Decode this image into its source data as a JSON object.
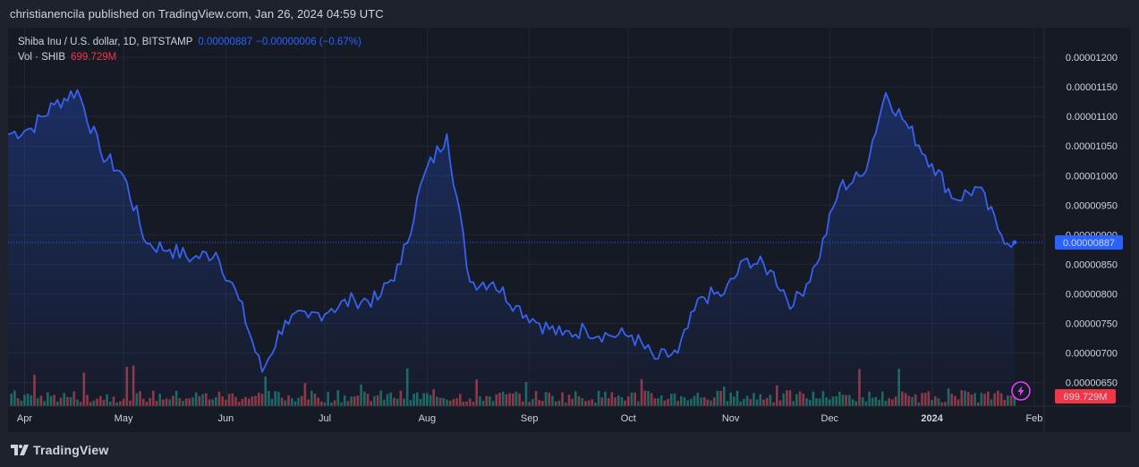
{
  "header": {
    "publisher_text": "christianencila published on TradingView.com, Jan 26, 2024 04:59 UTC"
  },
  "legend": {
    "symbol": "Shiba Inu / U.S. dollar, 1D, BITSTAMP",
    "last_price": "0.00000887",
    "change": "−0.00000006 (−0.67%)",
    "volume_label": "Vol · SHIB",
    "volume_value": "699.729M"
  },
  "footer": {
    "brand": "TradingView"
  },
  "colors": {
    "line": "#3861f0",
    "vol_up": "#22ab94",
    "vol_down": "#f7525f",
    "price_tag": "#2962ff",
    "vol_tag": "#f23645"
  },
  "icons": {
    "lightning": "lightning-icon",
    "brand": "tradingview-logo-icon"
  },
  "chart_data": {
    "type": "line",
    "series": [
      {
        "name": "Shiba Inu / U.S. dollar",
        "x": [
          "2023-03-27",
          "2023-04-03",
          "2023-04-10",
          "2023-04-17",
          "2023-04-24",
          "2023-05-01",
          "2023-05-08",
          "2023-05-15",
          "2023-05-22",
          "2023-05-29",
          "2023-06-05",
          "2023-06-12",
          "2023-06-19",
          "2023-06-26",
          "2023-07-03",
          "2023-07-10",
          "2023-07-17",
          "2023-07-24",
          "2023-07-31",
          "2023-08-07",
          "2023-08-14",
          "2023-08-21",
          "2023-08-28",
          "2023-09-04",
          "2023-09-11",
          "2023-09-18",
          "2023-09-25",
          "2023-10-02",
          "2023-10-09",
          "2023-10-16",
          "2023-10-23",
          "2023-10-30",
          "2023-11-06",
          "2023-11-13",
          "2023-11-20",
          "2023-11-27",
          "2023-12-04",
          "2023-12-11",
          "2023-12-18",
          "2023-12-25",
          "2024-01-01",
          "2024-01-08",
          "2024-01-15",
          "2024-01-22",
          "2024-01-26"
        ],
        "values": [
          1.07e-05,
          1.08e-05,
          1.12e-05,
          1.145e-05,
          1.04e-05,
          1e-05,
          8.85e-06,
          8.75e-06,
          8.6e-06,
          8.7e-06,
          7.9e-06,
          6.68e-06,
          7.55e-06,
          7.6e-06,
          7.75e-06,
          7.9e-06,
          7.9e-06,
          8.5e-06,
          1e-05,
          1.07e-05,
          8.2e-06,
          8.2e-06,
          7.8e-06,
          7.5e-06,
          7.3e-06,
          7.4e-06,
          7.3e-06,
          7.3e-06,
          6.9e-06,
          7e-06,
          7.95e-06,
          8e-06,
          8.6e-06,
          8.4e-06,
          7.8e-06,
          8.5e-06,
          9.8e-06,
          1e-05,
          1.14e-05,
          1.08e-05,
          1.02e-05,
          9.6e-06,
          9.8e-06,
          9e-06,
          8.87e-06
        ]
      }
    ],
    "volume": {
      "name": "Vol · SHIB",
      "last": "699.729M"
    },
    "y_axis": {
      "ticks": [
        "0.00001200",
        "0.00001150",
        "0.00001100",
        "0.00001050",
        "0.00001000",
        "0.00000950",
        "0.00000900",
        "0.00000850",
        "0.00000800",
        "0.00000750",
        "0.00000700",
        "0.00000650"
      ],
      "ylim": [
        6.1e-06,
        1.235e-05
      ],
      "last_label": "0.00000887"
    },
    "x_axis": {
      "range": [
        "2023-03-27",
        "2024-02-04"
      ],
      "ticks": [
        {
          "label": "Apr",
          "date": "2023-04-01"
        },
        {
          "label": "May",
          "date": "2023-05-01"
        },
        {
          "label": "Jun",
          "date": "2023-06-01"
        },
        {
          "label": "Jul",
          "date": "2023-07-01"
        },
        {
          "label": "Aug",
          "date": "2023-08-01"
        },
        {
          "label": "Sep",
          "date": "2023-09-01"
        },
        {
          "label": "Oct",
          "date": "2023-10-01"
        },
        {
          "label": "Nov",
          "date": "2023-11-01"
        },
        {
          "label": "Dec",
          "date": "2023-12-01"
        },
        {
          "label": "2024",
          "date": "2024-01-01",
          "bold": true
        },
        {
          "label": "Feb",
          "date": "2024-02-01"
        }
      ]
    },
    "grid": true
  }
}
